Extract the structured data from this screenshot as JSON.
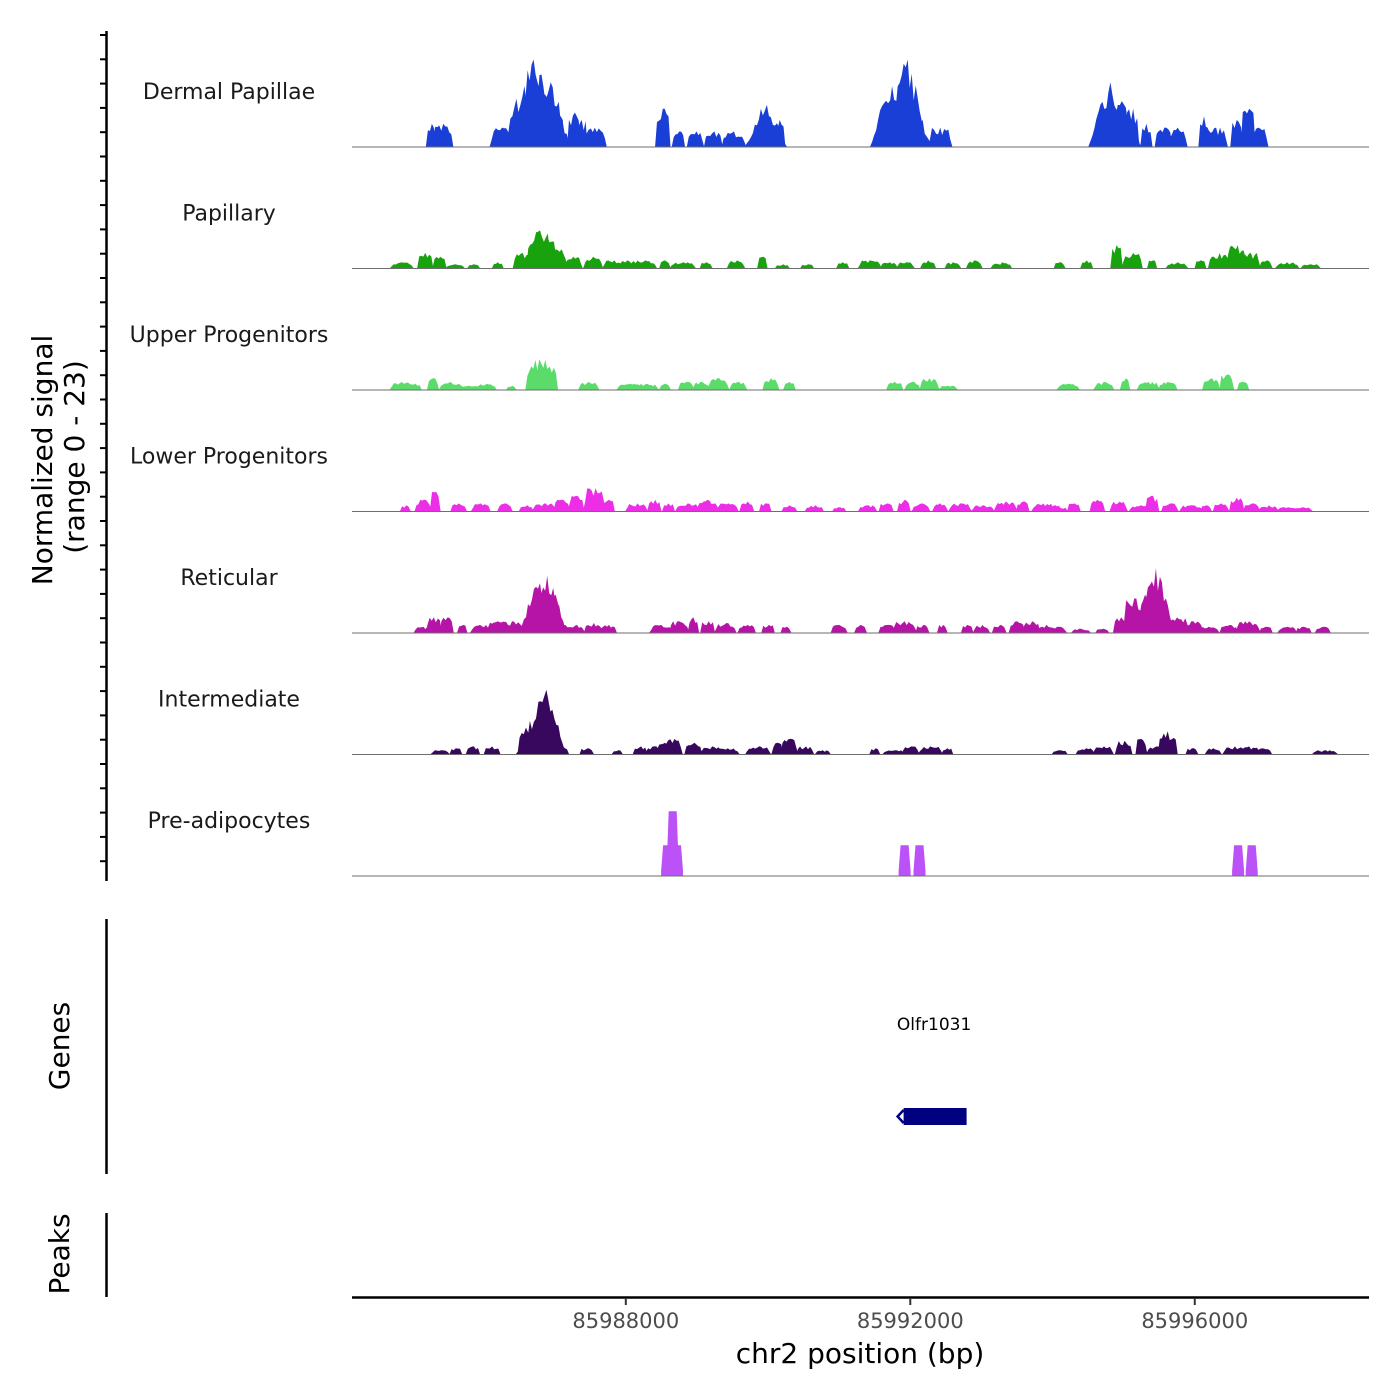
{
  "chart_data": {
    "type": "area",
    "title": "",
    "chromosome": "chr2",
    "xlabel": "chr2 position (bp)",
    "ylabel": "Normalized signal",
    "ylabel_range": "(range 0 - 23)",
    "signal_range": [
      0,
      23
    ],
    "xlim": [
      85984150,
      85998450
    ],
    "x_ticks": [
      85988000,
      85992000,
      85996000
    ],
    "x_tick_labels": [
      "85988000",
      "85992000",
      "85996000"
    ],
    "tracks": [
      {
        "name": "Dermal Papillae",
        "color": "#1a3fd6",
        "peaks": [
          [
            85985260,
            6
          ],
          [
            85985420,
            6
          ],
          [
            85986260,
            5
          ],
          [
            85986560,
            16
          ],
          [
            85986690,
            23
          ],
          [
            85986800,
            19
          ],
          [
            85986930,
            17
          ],
          [
            85987070,
            8
          ],
          [
            85987270,
            9
          ],
          [
            85987380,
            7
          ],
          [
            85987550,
            5
          ],
          [
            85988520,
            10
          ],
          [
            85988740,
            4
          ],
          [
            85988980,
            4
          ],
          [
            85989230,
            4
          ],
          [
            85989520,
            4
          ],
          [
            85989970,
            11
          ],
          [
            85990150,
            7
          ],
          [
            85991570,
            6
          ],
          [
            85991730,
            16
          ],
          [
            85991950,
            23
          ],
          [
            85992020,
            12
          ],
          [
            85992420,
            5
          ],
          [
            85994800,
            17
          ],
          [
            85994960,
            12
          ],
          [
            85995120,
            10
          ],
          [
            85995320,
            6
          ],
          [
            85995560,
            5
          ],
          [
            85995760,
            5
          ],
          [
            85996130,
            8
          ],
          [
            85996300,
            5
          ],
          [
            85996590,
            7
          ],
          [
            85996750,
            10
          ],
          [
            85996880,
            5
          ]
        ]
      },
      {
        "name": "Papillary",
        "color": "#18a30e",
        "peaks": [
          [
            85984850,
            1.5
          ],
          [
            85985180,
            4
          ],
          [
            85985380,
            3
          ],
          [
            85985600,
            1
          ],
          [
            85985860,
            1
          ],
          [
            85986200,
            1.5
          ],
          [
            85986550,
            4
          ],
          [
            85986780,
            10
          ],
          [
            85986900,
            8
          ],
          [
            85987000,
            5
          ],
          [
            85987260,
            3
          ],
          [
            85987540,
            3
          ],
          [
            85987840,
            2
          ],
          [
            85988020,
            2
          ],
          [
            85988260,
            2
          ],
          [
            85988550,
            2
          ],
          [
            85988800,
            1.5
          ],
          [
            85989130,
            1.5
          ],
          [
            85989550,
            2
          ],
          [
            85989920,
            3
          ],
          [
            85990200,
            1
          ],
          [
            85990550,
            1
          ],
          [
            85991050,
            1.5
          ],
          [
            85991430,
            2
          ],
          [
            85991700,
            1.5
          ],
          [
            85991930,
            1.5
          ],
          [
            85992250,
            2
          ],
          [
            85992600,
            1.5
          ],
          [
            85992900,
            2
          ],
          [
            85993280,
            1.5
          ],
          [
            85994100,
            1.5
          ],
          [
            85994480,
            2
          ],
          [
            85994900,
            6
          ],
          [
            85995120,
            4
          ],
          [
            85995400,
            2
          ],
          [
            85995750,
            1.5
          ],
          [
            85996080,
            2
          ],
          [
            85996350,
            4
          ],
          [
            85996590,
            6
          ],
          [
            85996790,
            4
          ],
          [
            85997000,
            2
          ],
          [
            85997300,
            1.5
          ],
          [
            85997630,
            1
          ]
        ]
      },
      {
        "name": "Upper Progenitors",
        "color": "#5bdc6a",
        "peaks": [
          [
            85984850,
            2
          ],
          [
            85985030,
            1.5
          ],
          [
            85985290,
            3
          ],
          [
            85985540,
            2
          ],
          [
            85985800,
            1
          ],
          [
            85986030,
            1.5
          ],
          [
            85986390,
            1
          ],
          [
            85986770,
            8
          ],
          [
            85986930,
            6
          ],
          [
            85987480,
            2
          ],
          [
            85988050,
            1.5
          ],
          [
            85988300,
            1.5
          ],
          [
            85988550,
            1.5
          ],
          [
            85988850,
            2
          ],
          [
            85989060,
            2
          ],
          [
            85989300,
            3
          ],
          [
            85989580,
            2
          ],
          [
            85990040,
            3
          ],
          [
            85990300,
            2
          ],
          [
            85991780,
            2
          ],
          [
            85992030,
            2
          ],
          [
            85992270,
            3
          ],
          [
            85992530,
            1
          ],
          [
            85994220,
            1.5
          ],
          [
            85994720,
            2
          ],
          [
            85995020,
            3
          ],
          [
            85995350,
            2
          ],
          [
            85995620,
            2
          ],
          [
            85996230,
            3
          ],
          [
            85996450,
            4
          ],
          [
            85996680,
            2
          ]
        ]
      },
      {
        "name": "Lower Progenitors",
        "color": "#ec2fe6",
        "peaks": [
          [
            85984900,
            1.5
          ],
          [
            85985150,
            3
          ],
          [
            85985320,
            5
          ],
          [
            85985650,
            2
          ],
          [
            85985960,
            2
          ],
          [
            85986300,
            2
          ],
          [
            85986600,
            1.5
          ],
          [
            85986860,
            2
          ],
          [
            85987100,
            3
          ],
          [
            85987300,
            4
          ],
          [
            85987560,
            6
          ],
          [
            85987750,
            3
          ],
          [
            85988150,
            2
          ],
          [
            85988400,
            3
          ],
          [
            85988600,
            2
          ],
          [
            85988870,
            2
          ],
          [
            85989150,
            3
          ],
          [
            85989430,
            2
          ],
          [
            85989700,
            2.5
          ],
          [
            85989960,
            2
          ],
          [
            85990300,
            1.5
          ],
          [
            85990650,
            1.5
          ],
          [
            85991000,
            1
          ],
          [
            85991400,
            1.5
          ],
          [
            85991660,
            2
          ],
          [
            85991910,
            3
          ],
          [
            85992150,
            2
          ],
          [
            85992420,
            2
          ],
          [
            85992700,
            2
          ],
          [
            85993020,
            1.5
          ],
          [
            85993340,
            2.5
          ],
          [
            85993580,
            2.5
          ],
          [
            85993870,
            2
          ],
          [
            85994040,
            1.5
          ],
          [
            85994100,
            1
          ],
          [
            85994300,
            2
          ],
          [
            85994630,
            3
          ],
          [
            85994930,
            2.5
          ],
          [
            85995240,
            1.5
          ],
          [
            85995400,
            4
          ],
          [
            85995650,
            2
          ],
          [
            85995950,
            1.5
          ],
          [
            85996160,
            1.5
          ],
          [
            85996370,
            2
          ],
          [
            85996590,
            3.5
          ],
          [
            85996800,
            2
          ],
          [
            85997030,
            1.5
          ],
          [
            85997300,
            1
          ],
          [
            85997500,
            1
          ]
        ]
      },
      {
        "name": "Reticular",
        "color": "#b614a6",
        "peaks": [
          [
            85985140,
            1.5
          ],
          [
            85985300,
            4
          ],
          [
            85985480,
            4
          ],
          [
            85985700,
            2
          ],
          [
            85985950,
            2
          ],
          [
            85986200,
            3
          ],
          [
            85986400,
            3
          ],
          [
            85986580,
            2
          ],
          [
            85986780,
            13
          ],
          [
            85986880,
            15
          ],
          [
            85987000,
            10
          ],
          [
            85987150,
            2
          ],
          [
            85987300,
            2
          ],
          [
            85987550,
            2.5
          ],
          [
            85987750,
            2
          ],
          [
            85988500,
            2
          ],
          [
            85988750,
            3
          ],
          [
            85988950,
            4
          ],
          [
            85989150,
            3
          ],
          [
            85989400,
            2.5
          ],
          [
            85989700,
            2
          ],
          [
            85990000,
            2
          ],
          [
            85990250,
            1.5
          ],
          [
            85991000,
            2
          ],
          [
            85991300,
            2
          ],
          [
            85991680,
            2
          ],
          [
            85991920,
            3
          ],
          [
            85992170,
            2
          ],
          [
            85992450,
            2
          ],
          [
            85992800,
            2
          ],
          [
            85993000,
            2
          ],
          [
            85993250,
            2
          ],
          [
            85993500,
            3
          ],
          [
            85993700,
            3
          ],
          [
            85993900,
            2
          ],
          [
            85994050,
            1.5
          ],
          [
            85994400,
            1
          ],
          [
            85994700,
            1
          ],
          [
            85994950,
            4
          ],
          [
            85995150,
            9
          ],
          [
            85995300,
            10
          ],
          [
            85995440,
            17
          ],
          [
            85995560,
            6
          ],
          [
            85995750,
            4
          ],
          [
            85995980,
            3
          ],
          [
            85996200,
            1.5
          ],
          [
            85996480,
            2
          ],
          [
            85996750,
            3
          ],
          [
            85997000,
            1.5
          ],
          [
            85997300,
            1.5
          ],
          [
            85997530,
            1.5
          ],
          [
            85997800,
            1.5
          ]
        ]
      },
      {
        "name": "Intermediate",
        "color": "#37085d",
        "peaks": [
          [
            85985390,
            1
          ],
          [
            85985610,
            1.5
          ],
          [
            85985850,
            2
          ],
          [
            85986120,
            2
          ],
          [
            85986580,
            7
          ],
          [
            85986750,
            11
          ],
          [
            85986870,
            17
          ],
          [
            85986990,
            7
          ],
          [
            85987100,
            2
          ],
          [
            85987450,
            1.5
          ],
          [
            85987880,
            1
          ],
          [
            85988200,
            2
          ],
          [
            85988430,
            2
          ],
          [
            85988550,
            3
          ],
          [
            85988670,
            4
          ],
          [
            85988950,
            3
          ],
          [
            85989200,
            2
          ],
          [
            85989420,
            1.5
          ],
          [
            85989860,
            2
          ],
          [
            85990130,
            3
          ],
          [
            85990300,
            4
          ],
          [
            85990520,
            2
          ],
          [
            85990770,
            1
          ],
          [
            85991500,
            1.5
          ],
          [
            85991770,
            1
          ],
          [
            85992000,
            2
          ],
          [
            85992280,
            2
          ],
          [
            85992520,
            1.5
          ],
          [
            85994100,
            1
          ],
          [
            85994460,
            1.5
          ],
          [
            85994710,
            2
          ],
          [
            85995000,
            3.5
          ],
          [
            85995250,
            4
          ],
          [
            85995450,
            2
          ],
          [
            85995620,
            6
          ],
          [
            85995960,
            1.5
          ],
          [
            85996260,
            1.5
          ],
          [
            85996550,
            2
          ],
          [
            85996750,
            2
          ],
          [
            85996950,
            1.5
          ],
          [
            85997830,
            1
          ]
        ]
      },
      {
        "name": "Pre-adipocytes",
        "color": "#bb52f7",
        "peaks": [
          [
            85988580,
            8
          ],
          [
            85988660,
            17
          ],
          [
            85988720,
            8
          ],
          [
            85991920,
            8
          ],
          [
            85992130,
            8
          ],
          [
            85996610,
            8
          ],
          [
            85996800,
            8
          ]
        ]
      }
    ],
    "genes": [
      {
        "name": "Olfr1031",
        "start": 85991850,
        "end": 85992820,
        "strand": "-"
      }
    ],
    "peaks_track": {
      "name": "Peaks",
      "items": []
    },
    "panel_labels": [
      "Genes",
      "Peaks"
    ]
  }
}
